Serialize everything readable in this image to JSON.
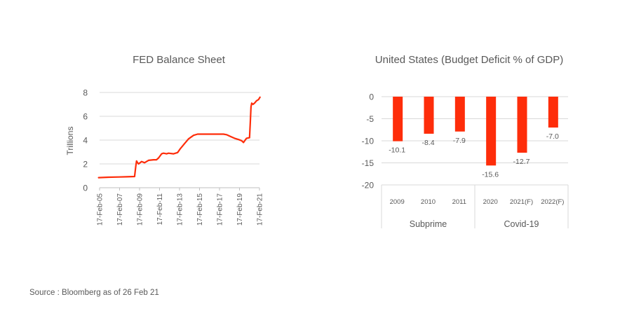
{
  "source_note": "Source : Bloomberg as of 26 Feb 21",
  "colors": {
    "series": "#fe2d0a",
    "grid": "#d9d9d9",
    "text": "#595959"
  },
  "chart_data": [
    {
      "type": "line",
      "title": "FED Balance Sheet",
      "ylabel": "Trillions",
      "xlabel": "",
      "ylim": [
        0,
        8
      ],
      "y_ticks": [
        "0",
        "2",
        "4",
        "6",
        "8"
      ],
      "x_ticks": [
        "17-Feb-05",
        "17-Feb-07",
        "17-Feb-09",
        "17-Feb-11",
        "17-Feb-13",
        "17-Feb-15",
        "17-Feb-17",
        "17-Feb-19",
        "17-Feb-21"
      ],
      "grid": "horizontal",
      "series": [
        {
          "x": [
            2005.0,
            2006.0,
            2007.0,
            2007.8,
            2008.6,
            2008.72,
            2008.8,
            2008.9,
            2009.0,
            2009.3,
            2009.6,
            2010.0,
            2010.5,
            2010.8,
            2011.0,
            2011.3,
            2011.5,
            2011.8,
            2012.0,
            2012.5,
            2012.9,
            2013.2,
            2013.6,
            2014.0,
            2014.5,
            2014.9,
            2015.5,
            2016.5,
            2017.5,
            2017.8,
            2018.2,
            2018.6,
            2019.0,
            2019.3,
            2019.5,
            2019.8,
            2020.1,
            2020.18,
            2020.25,
            2020.32,
            2020.45,
            2020.6,
            2020.8,
            2021.0,
            2021.15
          ],
          "y": [
            0.85,
            0.88,
            0.9,
            0.92,
            0.94,
            1.8,
            2.25,
            2.1,
            2.0,
            2.2,
            2.1,
            2.3,
            2.35,
            2.35,
            2.5,
            2.85,
            2.9,
            2.85,
            2.9,
            2.85,
            2.95,
            3.3,
            3.7,
            4.1,
            4.4,
            4.5,
            4.5,
            4.5,
            4.5,
            4.45,
            4.3,
            4.15,
            4.05,
            3.95,
            3.8,
            4.15,
            4.2,
            5.5,
            6.8,
            7.1,
            7.0,
            7.1,
            7.3,
            7.4,
            7.6
          ]
        }
      ]
    },
    {
      "type": "bar",
      "title": "United States (Budget Deficit % of GDP)",
      "xlabel": "",
      "ylabel": "",
      "ylim": [
        -20,
        0
      ],
      "y_ticks": [
        "0",
        "-5",
        "-10",
        "-15",
        "-20"
      ],
      "categories": [
        "2009",
        "2010",
        "2011",
        "2020",
        "2021(F)",
        "2022(F)"
      ],
      "values": [
        -10.1,
        -8.4,
        -7.9,
        -15.6,
        -12.7,
        -7.0
      ],
      "data_labels": [
        "-10.1",
        "-8.4",
        "-7.9",
        "-15.6",
        "-12.7",
        "-7.0"
      ],
      "groups": [
        {
          "label": "Subprime",
          "categories": [
            "2009",
            "2010",
            "2011"
          ]
        },
        {
          "label": "Covid-19",
          "categories": [
            "2020",
            "2021(F)",
            "2022(F)"
          ]
        }
      ],
      "grid": "horizontal"
    }
  ]
}
